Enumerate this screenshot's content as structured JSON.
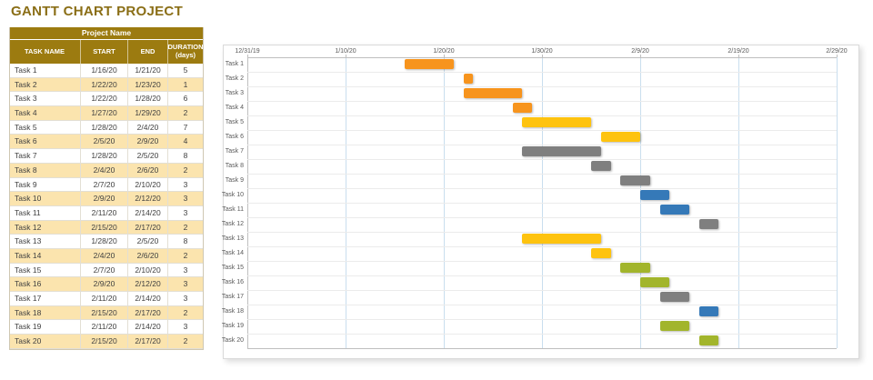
{
  "title": "GANTT CHART PROJECT",
  "table": {
    "project_header": "Project Name",
    "columns": [
      "TASK NAME",
      "START",
      "END",
      "DURATION (days)"
    ],
    "rows": [
      {
        "task": "Task 1",
        "start": "1/16/20",
        "end": "1/21/20",
        "duration": "5"
      },
      {
        "task": "Task 2",
        "start": "1/22/20",
        "end": "1/23/20",
        "duration": "1"
      },
      {
        "task": "Task 3",
        "start": "1/22/20",
        "end": "1/28/20",
        "duration": "6"
      },
      {
        "task": "Task 4",
        "start": "1/27/20",
        "end": "1/29/20",
        "duration": "2"
      },
      {
        "task": "Task 5",
        "start": "1/28/20",
        "end": "2/4/20",
        "duration": "7"
      },
      {
        "task": "Task 6",
        "start": "2/5/20",
        "end": "2/9/20",
        "duration": "4"
      },
      {
        "task": "Task 7",
        "start": "1/28/20",
        "end": "2/5/20",
        "duration": "8"
      },
      {
        "task": "Task 8",
        "start": "2/4/20",
        "end": "2/6/20",
        "duration": "2"
      },
      {
        "task": "Task 9",
        "start": "2/7/20",
        "end": "2/10/20",
        "duration": "3"
      },
      {
        "task": "Task 10",
        "start": "2/9/20",
        "end": "2/12/20",
        "duration": "3"
      },
      {
        "task": "Task 11",
        "start": "2/11/20",
        "end": "2/14/20",
        "duration": "3"
      },
      {
        "task": "Task 12",
        "start": "2/15/20",
        "end": "2/17/20",
        "duration": "2"
      },
      {
        "task": "Task 13",
        "start": "1/28/20",
        "end": "2/5/20",
        "duration": "8"
      },
      {
        "task": "Task 14",
        "start": "2/4/20",
        "end": "2/6/20",
        "duration": "2"
      },
      {
        "task": "Task 15",
        "start": "2/7/20",
        "end": "2/10/20",
        "duration": "3"
      },
      {
        "task": "Task 16",
        "start": "2/9/20",
        "end": "2/12/20",
        "duration": "3"
      },
      {
        "task": "Task 17",
        "start": "2/11/20",
        "end": "2/14/20",
        "duration": "3"
      },
      {
        "task": "Task 18",
        "start": "2/15/20",
        "end": "2/17/20",
        "duration": "2"
      },
      {
        "task": "Task 19",
        "start": "2/11/20",
        "end": "2/14/20",
        "duration": "3"
      },
      {
        "task": "Task 20",
        "start": "2/15/20",
        "end": "2/17/20",
        "duration": "2"
      }
    ]
  },
  "chart_data": {
    "type": "gantt",
    "x_ticks": [
      "12/31/19",
      "1/10/20",
      "1/20/20",
      "1/30/20",
      "2/9/20",
      "2/19/20",
      "2/29/20"
    ],
    "x_range_days": [
      0,
      60
    ],
    "x_origin_date": "12/31/19",
    "grid": "on",
    "palette": {
      "orange": "#F7941D",
      "yellow": "#FEC30F",
      "gray": "#7F7F7F",
      "blue": "#3579B8",
      "green": "#A2B52C"
    },
    "tasks": [
      {
        "name": "Task 1",
        "start": "1/16/20",
        "end": "1/21/20",
        "start_day": 16,
        "end_day": 21,
        "color": "orange"
      },
      {
        "name": "Task 2",
        "start": "1/22/20",
        "end": "1/23/20",
        "start_day": 22,
        "end_day": 23,
        "color": "orange"
      },
      {
        "name": "Task 3",
        "start": "1/22/20",
        "end": "1/28/20",
        "start_day": 22,
        "end_day": 28,
        "color": "orange"
      },
      {
        "name": "Task 4",
        "start": "1/27/20",
        "end": "1/29/20",
        "start_day": 27,
        "end_day": 29,
        "color": "orange"
      },
      {
        "name": "Task 5",
        "start": "1/28/20",
        "end": "2/4/20",
        "start_day": 28,
        "end_day": 35,
        "color": "yellow"
      },
      {
        "name": "Task 6",
        "start": "2/5/20",
        "end": "2/9/20",
        "start_day": 36,
        "end_day": 40,
        "color": "yellow"
      },
      {
        "name": "Task 7",
        "start": "1/28/20",
        "end": "2/5/20",
        "start_day": 28,
        "end_day": 36,
        "color": "gray"
      },
      {
        "name": "Task 8",
        "start": "2/4/20",
        "end": "2/6/20",
        "start_day": 35,
        "end_day": 37,
        "color": "gray"
      },
      {
        "name": "Task 9",
        "start": "2/7/20",
        "end": "2/10/20",
        "start_day": 38,
        "end_day": 41,
        "color": "gray"
      },
      {
        "name": "Task 10",
        "start": "2/9/20",
        "end": "2/12/20",
        "start_day": 40,
        "end_day": 43,
        "color": "blue"
      },
      {
        "name": "Task 11",
        "start": "2/11/20",
        "end": "2/14/20",
        "start_day": 42,
        "end_day": 45,
        "color": "blue"
      },
      {
        "name": "Task 12",
        "start": "2/15/20",
        "end": "2/17/20",
        "start_day": 46,
        "end_day": 48,
        "color": "gray"
      },
      {
        "name": "Task 13",
        "start": "1/28/20",
        "end": "2/5/20",
        "start_day": 28,
        "end_day": 36,
        "color": "yellow"
      },
      {
        "name": "Task 14",
        "start": "2/4/20",
        "end": "2/6/20",
        "start_day": 35,
        "end_day": 37,
        "color": "yellow"
      },
      {
        "name": "Task 15",
        "start": "2/7/20",
        "end": "2/10/20",
        "start_day": 38,
        "end_day": 41,
        "color": "green"
      },
      {
        "name": "Task 16",
        "start": "2/9/20",
        "end": "2/12/20",
        "start_day": 40,
        "end_day": 43,
        "color": "green"
      },
      {
        "name": "Task 17",
        "start": "2/11/20",
        "end": "2/14/20",
        "start_day": 42,
        "end_day": 45,
        "color": "gray"
      },
      {
        "name": "Task 18",
        "start": "2/15/20",
        "end": "2/17/20",
        "start_day": 46,
        "end_day": 48,
        "color": "blue"
      },
      {
        "name": "Task 19",
        "start": "2/11/20",
        "end": "2/14/20",
        "start_day": 42,
        "end_day": 45,
        "color": "green"
      },
      {
        "name": "Task 20",
        "start": "2/15/20",
        "end": "2/17/20",
        "start_day": 46,
        "end_day": 48,
        "color": "green"
      }
    ],
    "theme": {
      "header_gold": "#9C7B10",
      "title_gold": "#8A6E16",
      "row_tan": "#FBE4AE",
      "gridline_blue": "#C9DEEE",
      "axis_gray": "#BFBFBF"
    }
  }
}
